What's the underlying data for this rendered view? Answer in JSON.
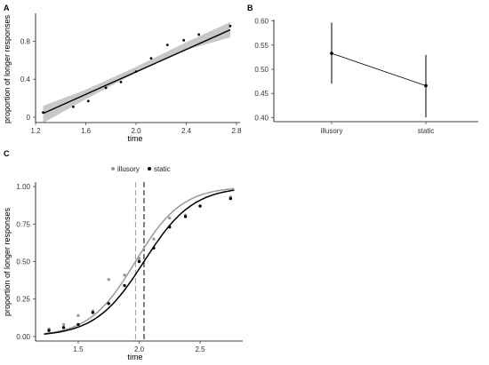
{
  "chart_data": [
    {
      "panel": "A",
      "type": "scatter",
      "xlabel": "time",
      "ylabel": "proportion of longer responses",
      "xlim": [
        1.2,
        2.8
      ],
      "ylim": [
        0.0,
        1.0
      ],
      "xticks": [
        "1.2",
        "1.6",
        "2.0",
        "2.4",
        "2.8"
      ],
      "yticks": [
        "0",
        "0.4",
        "0.8"
      ],
      "grid": false,
      "points": [
        {
          "x": 1.26,
          "y": 0.05
        },
        {
          "x": 1.5,
          "y": 0.11
        },
        {
          "x": 1.62,
          "y": 0.17
        },
        {
          "x": 1.76,
          "y": 0.31
        },
        {
          "x": 1.88,
          "y": 0.37
        },
        {
          "x": 2.0,
          "y": 0.48
        },
        {
          "x": 2.12,
          "y": 0.62
        },
        {
          "x": 2.25,
          "y": 0.76
        },
        {
          "x": 2.38,
          "y": 0.81
        },
        {
          "x": 2.5,
          "y": 0.87
        },
        {
          "x": 2.75,
          "y": 0.96
        }
      ],
      "fit": {
        "kind": "linear",
        "x": [
          1.26,
          2.75
        ],
        "y": [
          0.04,
          0.92
        ]
      },
      "band": {
        "x": [
          1.26,
          1.6,
          2.0,
          2.4,
          2.75
        ],
        "lower": [
          -0.06,
          0.19,
          0.47,
          0.71,
          0.84
        ],
        "upper": [
          0.12,
          0.29,
          0.53,
          0.79,
          1.0
        ]
      }
    },
    {
      "panel": "B",
      "type": "scatter",
      "xlabel": "",
      "ylabel": "",
      "categories": [
        "illusory",
        "static"
      ],
      "ylim": [
        0.395,
        0.605
      ],
      "yticks": [
        "0.40",
        "0.45",
        "0.50",
        "0.55",
        "0.60"
      ],
      "grid": false,
      "values": [
        0.533,
        0.466
      ],
      "errors_low": [
        0.47,
        0.4
      ],
      "errors_high": [
        0.597,
        0.53
      ]
    },
    {
      "panel": "C",
      "type": "line",
      "xlabel": "time",
      "ylabel": "proportion of longer responses",
      "xlim": [
        1.15,
        2.85
      ],
      "ylim": [
        -0.03,
        1.03
      ],
      "xticks": [
        "1.5",
        "2.0",
        "2.5"
      ],
      "yticks": [
        "0.00",
        "0.25",
        "0.50",
        "0.75",
        "1.00"
      ],
      "grid": false,
      "legend_position": "top",
      "series": [
        {
          "name": "illusory",
          "color": "#999999",
          "points": [
            {
              "x": 1.26,
              "y": 0.05
            },
            {
              "x": 1.38,
              "y": 0.08
            },
            {
              "x": 1.5,
              "y": 0.14
            },
            {
              "x": 1.62,
              "y": 0.17
            },
            {
              "x": 1.75,
              "y": 0.38
            },
            {
              "x": 1.88,
              "y": 0.41
            },
            {
              "x": 2.0,
              "y": 0.52
            },
            {
              "x": 2.12,
              "y": 0.65
            },
            {
              "x": 2.25,
              "y": 0.79
            },
            {
              "x": 2.38,
              "y": 0.81
            },
            {
              "x": 2.5,
              "y": 0.87
            },
            {
              "x": 2.75,
              "y": 0.93
            }
          ],
          "pse": 1.97,
          "curve_mu": 1.97,
          "curve_s": 0.19
        },
        {
          "name": "static",
          "color": "#000000",
          "points": [
            {
              "x": 1.26,
              "y": 0.04
            },
            {
              "x": 1.38,
              "y": 0.06
            },
            {
              "x": 1.5,
              "y": 0.08
            },
            {
              "x": 1.62,
              "y": 0.16
            },
            {
              "x": 1.75,
              "y": 0.22
            },
            {
              "x": 1.88,
              "y": 0.34
            },
            {
              "x": 2.0,
              "y": 0.5
            },
            {
              "x": 2.12,
              "y": 0.59
            },
            {
              "x": 2.25,
              "y": 0.73
            },
            {
              "x": 2.38,
              "y": 0.8
            },
            {
              "x": 2.5,
              "y": 0.87
            },
            {
              "x": 2.75,
              "y": 0.92
            }
          ],
          "pse": 2.04,
          "curve_mu": 2.04,
          "curve_s": 0.2
        }
      ]
    }
  ]
}
